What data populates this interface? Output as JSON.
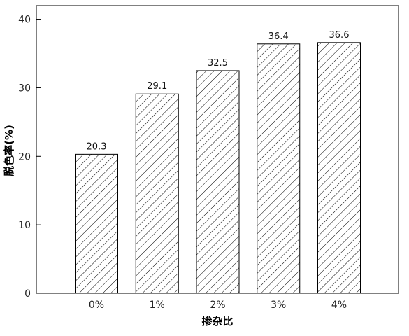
{
  "chart_data": {
    "type": "bar",
    "categories": [
      "0%",
      "1%",
      "2%",
      "3%",
      "4%"
    ],
    "values": [
      20.3,
      29.1,
      32.5,
      36.4,
      36.6
    ],
    "data_labels": [
      "20.3",
      "29.1",
      "32.5",
      "36.4",
      "36.6"
    ],
    "title": "",
    "xlabel": "掺杂比",
    "ylabel": "脱色率(%)",
    "ylim": [
      0,
      42
    ],
    "yticks": [
      0,
      10,
      20,
      30,
      40
    ],
    "ytick_labels": [
      "0",
      "10",
      "20",
      "30",
      "40"
    ],
    "grid": false,
    "bar_fill": "hatched",
    "bar_color": "#ffffff",
    "edge_color": "#000000"
  }
}
